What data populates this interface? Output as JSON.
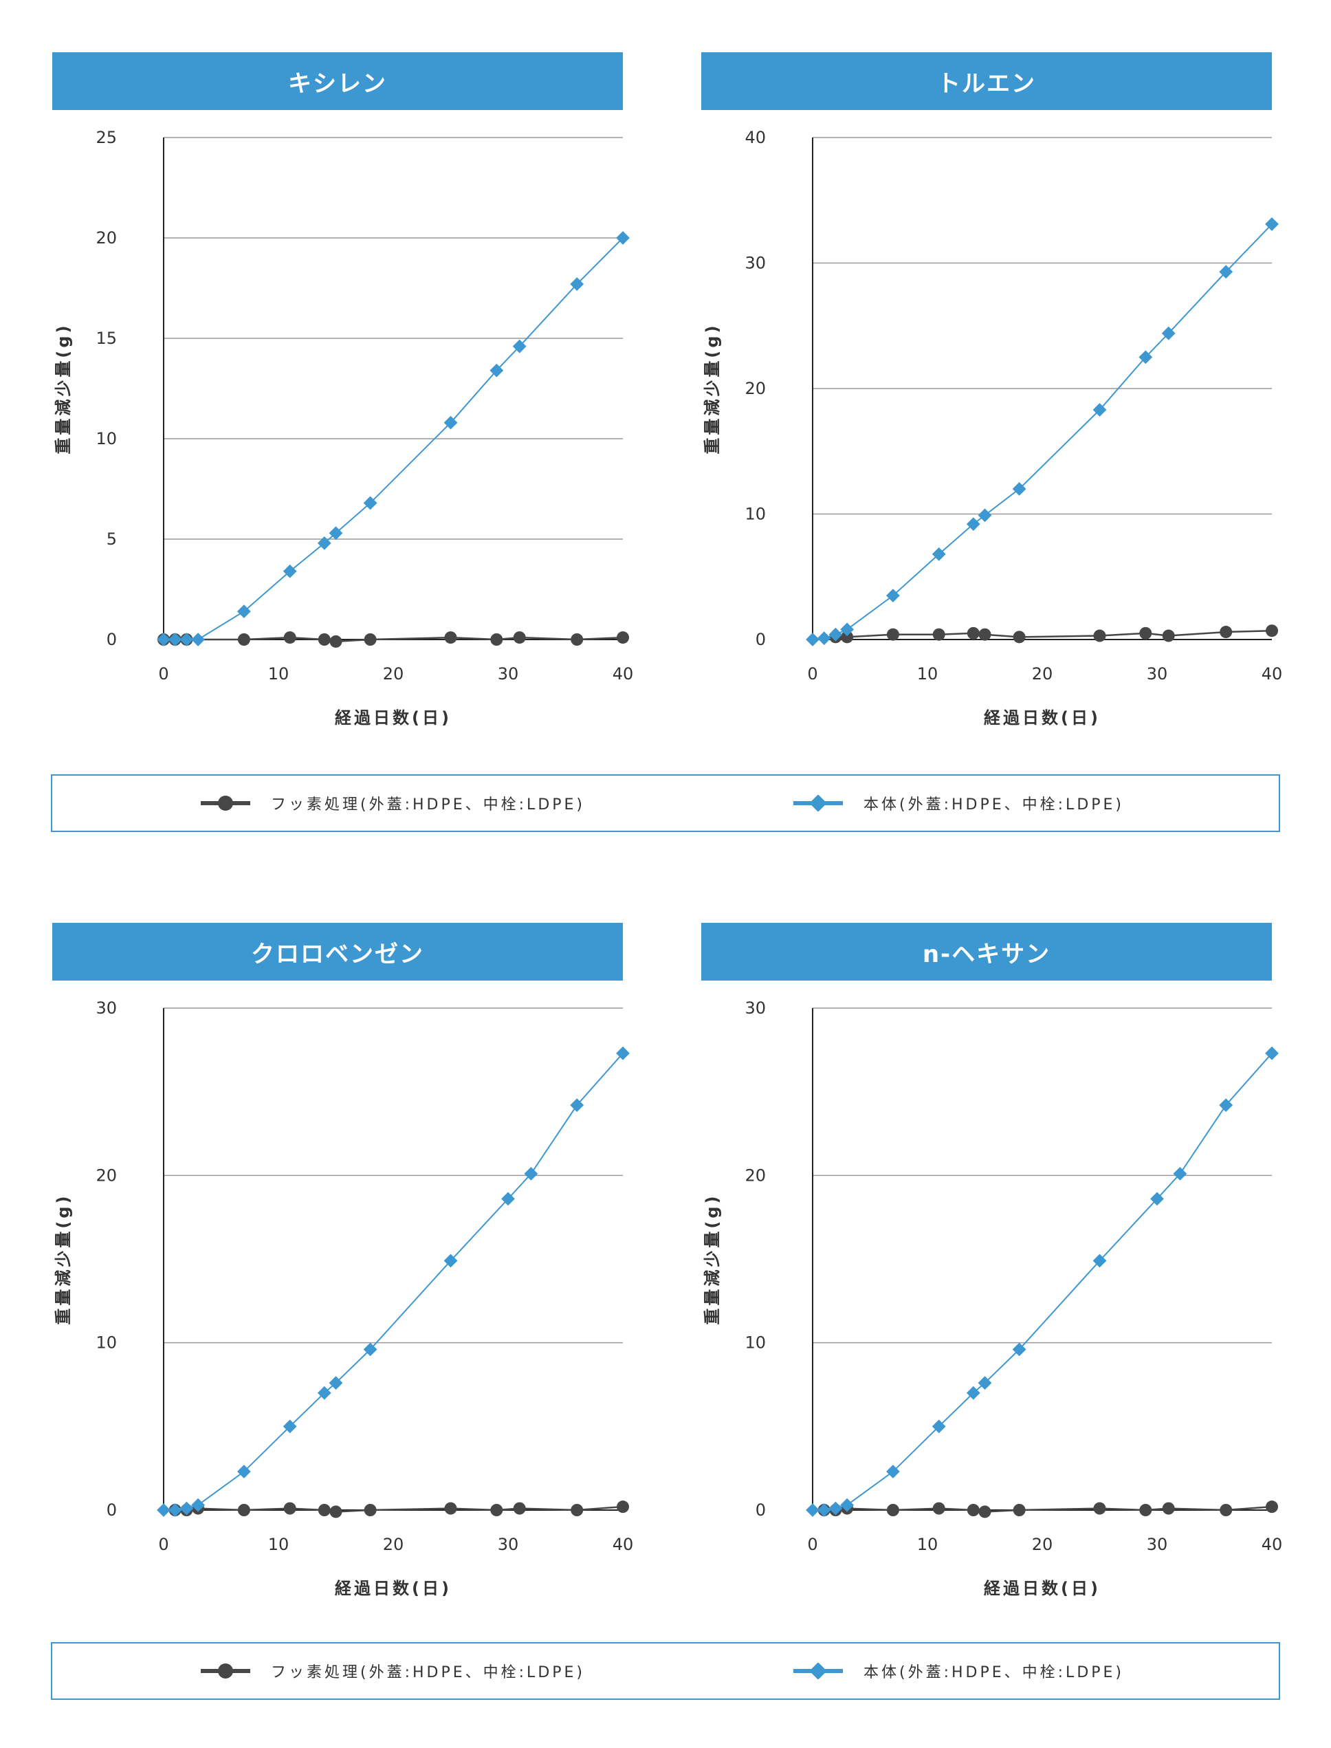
{
  "colors": {
    "accent": "#3d97d0",
    "dark_series": "#474747",
    "grid": "#9a9a9a"
  },
  "legend": {
    "item1": {
      "label": "フッ素処理(外蓋:HDPE、中栓:LDPE)",
      "marker": "circle",
      "color": "#474747"
    },
    "item2": {
      "label": "本体(外蓋:HDPE、中栓:LDPE)",
      "marker": "diamond",
      "color": "#3d97d0"
    }
  },
  "chart_data": [
    {
      "type": "line",
      "title": "キシレン",
      "xlabel": "経過日数(日)",
      "ylabel": "重量減少量(g)",
      "xlim": [
        0,
        40
      ],
      "ylim": [
        0,
        25
      ],
      "xticks": [
        0,
        10,
        20,
        30,
        40
      ],
      "yticks": [
        0,
        5,
        10,
        15,
        20,
        25
      ],
      "grid": true,
      "series": [
        {
          "marker": "circle",
          "color": "#474747",
          "points": [
            [
              0,
              0
            ],
            [
              1,
              0
            ],
            [
              2,
              0
            ],
            [
              7,
              0
            ],
            [
              11,
              0.1
            ],
            [
              14,
              0
            ],
            [
              15,
              -0.1
            ],
            [
              18,
              0
            ],
            [
              25,
              0.1
            ],
            [
              29,
              0
            ],
            [
              31,
              0.1
            ],
            [
              36,
              0
            ],
            [
              40,
              0.1
            ]
          ]
        },
        {
          "marker": "diamond",
          "color": "#3d97d0",
          "points": [
            [
              0,
              0
            ],
            [
              1,
              0
            ],
            [
              2,
              0
            ],
            [
              3,
              0
            ],
            [
              7,
              1.4
            ],
            [
              11,
              3.4
            ],
            [
              14,
              4.8
            ],
            [
              15,
              5.3
            ],
            [
              18,
              6.8
            ],
            [
              25,
              10.8
            ],
            [
              29,
              13.4
            ],
            [
              31,
              14.6
            ],
            [
              36,
              17.7
            ],
            [
              40,
              20
            ]
          ]
        }
      ]
    },
    {
      "type": "line",
      "title": "トルエン",
      "xlabel": "経過日数(日)",
      "ylabel": "重量減少量(g)",
      "xlim": [
        0,
        40
      ],
      "ylim": [
        0,
        40
      ],
      "xticks": [
        0,
        10,
        20,
        30,
        40
      ],
      "yticks": [
        0,
        10,
        20,
        30,
        40
      ],
      "grid": true,
      "series": [
        {
          "marker": "circle",
          "color": "#474747",
          "points": [
            [
              2,
              0.2
            ],
            [
              3,
              0.2
            ],
            [
              7,
              0.4
            ],
            [
              11,
              0.4
            ],
            [
              14,
              0.5
            ],
            [
              15,
              0.4
            ],
            [
              18,
              0.2
            ],
            [
              25,
              0.3
            ],
            [
              29,
              0.5
            ],
            [
              31,
              0.3
            ],
            [
              36,
              0.6
            ],
            [
              40,
              0.7
            ]
          ]
        },
        {
          "marker": "diamond",
          "color": "#3d97d0",
          "points": [
            [
              0,
              0
            ],
            [
              1,
              0.1
            ],
            [
              2,
              0.4
            ],
            [
              3,
              0.8
            ],
            [
              7,
              3.5
            ],
            [
              11,
              6.8
            ],
            [
              14,
              9.2
            ],
            [
              15,
              9.9
            ],
            [
              18,
              12
            ],
            [
              25,
              18.3
            ],
            [
              29,
              22.5
            ],
            [
              31,
              24.4
            ],
            [
              36,
              29.3
            ],
            [
              40,
              33.1
            ]
          ]
        }
      ]
    },
    {
      "type": "line",
      "title": "クロロベンゼン",
      "xlabel": "経過日数(日)",
      "ylabel": "重量減少量(g)",
      "xlim": [
        0,
        40
      ],
      "ylim": [
        0,
        30
      ],
      "xticks": [
        0,
        10,
        20,
        30,
        40
      ],
      "yticks": [
        0,
        10,
        20,
        30
      ],
      "grid": true,
      "series": [
        {
          "marker": "circle",
          "color": "#474747",
          "points": [
            [
              1,
              0
            ],
            [
              2,
              0
            ],
            [
              3,
              0.1
            ],
            [
              7,
              0
            ],
            [
              11,
              0.1
            ],
            [
              14,
              0
            ],
            [
              15,
              -0.1
            ],
            [
              18,
              0
            ],
            [
              25,
              0.1
            ],
            [
              29,
              0
            ],
            [
              31,
              0.1
            ],
            [
              36,
              0
            ],
            [
              40,
              0.2
            ]
          ]
        },
        {
          "marker": "diamond",
          "color": "#3d97d0",
          "points": [
            [
              0,
              0
            ],
            [
              1,
              0
            ],
            [
              2,
              0.1
            ],
            [
              3,
              0.3
            ],
            [
              7,
              2.3
            ],
            [
              11,
              5
            ],
            [
              14,
              7
            ],
            [
              15,
              7.6
            ],
            [
              18,
              9.6
            ],
            [
              25,
              14.9
            ],
            [
              30,
              18.6
            ],
            [
              32,
              20.1
            ],
            [
              36,
              24.2
            ],
            [
              40,
              27.3
            ]
          ]
        }
      ]
    },
    {
      "type": "line",
      "title": "n-ヘキサン",
      "xlabel": "経過日数(日)",
      "ylabel": "重量減少量(g)",
      "xlim": [
        0,
        40
      ],
      "ylim": [
        0,
        30
      ],
      "xticks": [
        0,
        10,
        20,
        30,
        40
      ],
      "yticks": [
        0,
        10,
        20,
        30
      ],
      "grid": true,
      "series": [
        {
          "marker": "circle",
          "color": "#474747",
          "points": [
            [
              1,
              0
            ],
            [
              2,
              0
            ],
            [
              3,
              0.1
            ],
            [
              7,
              0
            ],
            [
              11,
              0.1
            ],
            [
              14,
              0
            ],
            [
              15,
              -0.1
            ],
            [
              18,
              0
            ],
            [
              25,
              0.1
            ],
            [
              29,
              0
            ],
            [
              31,
              0.1
            ],
            [
              36,
              0
            ],
            [
              40,
              0.2
            ]
          ]
        },
        {
          "marker": "diamond",
          "color": "#3d97d0",
          "points": [
            [
              0,
              0
            ],
            [
              1,
              0
            ],
            [
              2,
              0.1
            ],
            [
              3,
              0.3
            ],
            [
              7,
              2.3
            ],
            [
              11,
              5
            ],
            [
              14,
              7
            ],
            [
              15,
              7.6
            ],
            [
              18,
              9.6
            ],
            [
              25,
              14.9
            ],
            [
              30,
              18.6
            ],
            [
              32,
              20.1
            ],
            [
              36,
              24.2
            ],
            [
              40,
              27.3
            ]
          ]
        }
      ]
    }
  ]
}
